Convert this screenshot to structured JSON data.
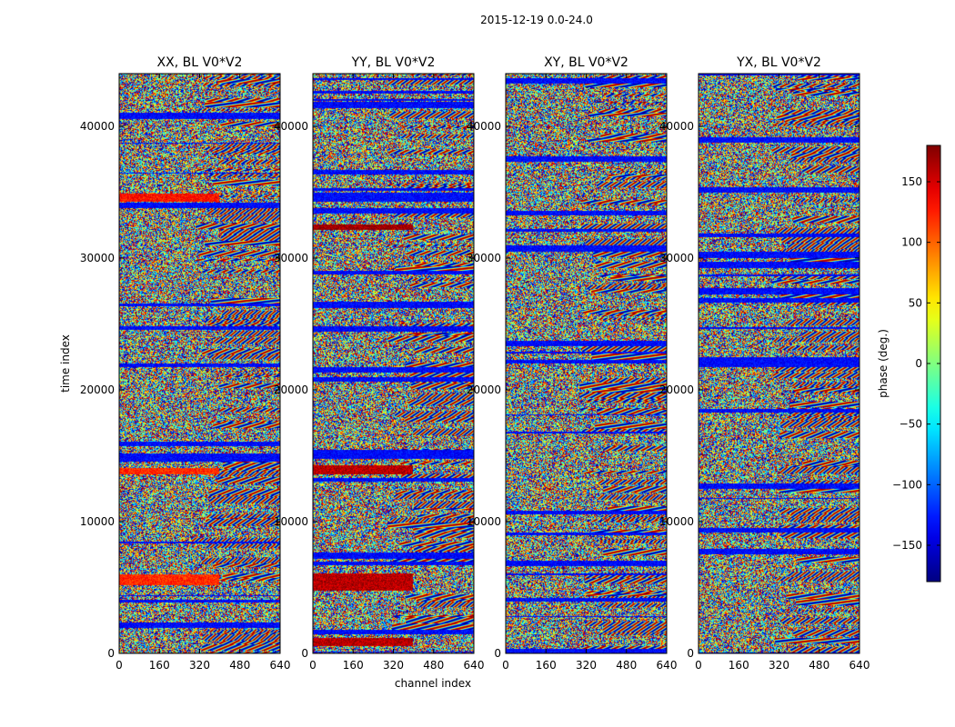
{
  "chart_data": {
    "type": "heatmap",
    "suptitle": "2015-12-19 0.0-24.0",
    "xlabel": "channel index",
    "ylabel": "time index",
    "xlim": [
      0,
      640
    ],
    "ylim": [
      0,
      44000
    ],
    "xticks": [
      0,
      160,
      320,
      480,
      640
    ],
    "yticks": [
      0,
      10000,
      20000,
      30000,
      40000
    ],
    "panels": [
      {
        "title": "XX, BL V0*V2",
        "seed": 11
      },
      {
        "title": "YY, BL V0*V2",
        "seed": 23
      },
      {
        "title": "XY, BL V0*V2",
        "seed": 37
      },
      {
        "title": "YX, BL V0*V2",
        "seed": 53
      }
    ],
    "colorbar": {
      "label": "phase (deg.)",
      "range": [
        -180,
        180
      ],
      "ticks": [
        -150,
        -100,
        -50,
        0,
        50,
        100,
        150
      ],
      "tick_labels": [
        "−150",
        "−100",
        "−50",
        "0",
        "50",
        "100",
        "150"
      ],
      "colormap": "jet"
    },
    "notable_bands": [
      {
        "panel": "XX, BL V0*V2",
        "time_range": [
          34300,
          34900
        ],
        "phase": 130
      },
      {
        "panel": "YY, BL V0*V2",
        "time_range": [
          32200,
          32600
        ],
        "phase": 170
      },
      {
        "panel": "YY, BL V0*V2",
        "time_range": [
          13600,
          14300
        ],
        "phase": 160
      },
      {
        "panel": "YY, BL V0*V2",
        "time_range": [
          4800,
          6100
        ],
        "phase": 160
      },
      {
        "panel": "YY, BL V0*V2",
        "time_range": [
          600,
          1200
        ],
        "phase": 160
      },
      {
        "panel": "XX, BL V0*V2",
        "time_range": [
          13600,
          14100
        ],
        "phase": 120
      },
      {
        "panel": "XX, BL V0*V2",
        "time_range": [
          5200,
          6000
        ],
        "phase": 120
      }
    ]
  }
}
